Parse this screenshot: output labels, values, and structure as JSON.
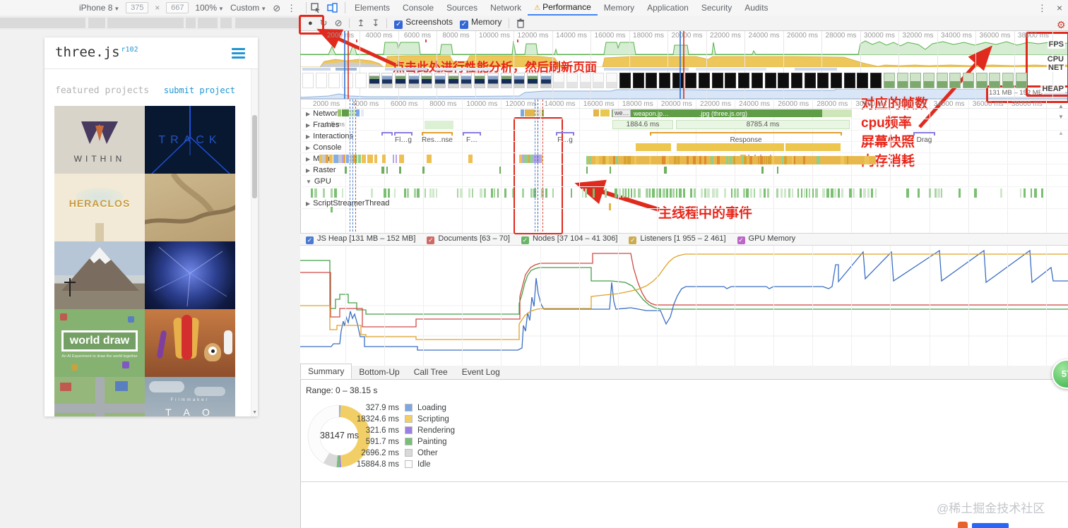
{
  "device_toolbar": {
    "device": "iPhone 8",
    "width": "375",
    "height": "667",
    "zoom": "100%",
    "throttle": "Custom"
  },
  "devtools_tabs": {
    "items": [
      "Elements",
      "Console",
      "Sources",
      "Network",
      "Performance",
      "Memory",
      "Application",
      "Security",
      "Audits"
    ],
    "active": "Performance"
  },
  "perf_toolbar": {
    "screenshots_label": "Screenshots",
    "memory_label": "Memory"
  },
  "overview": {
    "ticks": [
      "2000 ms",
      "4000 ms",
      "6000 ms",
      "8000 ms",
      "10000 ms",
      "12000 ms",
      "14000 ms",
      "16000 ms",
      "18000 ms",
      "20000 ms",
      "22000 ms",
      "24000 ms",
      "26000 ms",
      "28000 ms",
      "30000 ms",
      "32000 ms",
      "34000 ms",
      "36000 ms",
      "38000 ms"
    ],
    "side_labels": [
      "FPS",
      "CPU",
      "NET",
      "HEAP"
    ],
    "heap_range": "131 MB – 152 MB"
  },
  "detail": {
    "ticks": [
      "2000 ms",
      "4000 ms",
      "6000 ms",
      "8000 ms",
      "10000 ms",
      "12000 ms",
      "14000 ms",
      "16000 ms",
      "18000 ms",
      "20000 ms",
      "22000 ms",
      "24000 ms",
      "26000 ms",
      "28000 ms",
      "30000 ms",
      "32000 ms",
      "34000 ms",
      "36000 ms",
      "38000 ms"
    ],
    "tracks": [
      {
        "arrow": "▶",
        "label": "Network"
      },
      {
        "arrow": "▶",
        "label": "Frames"
      },
      {
        "arrow": "▶",
        "label": "Interactions"
      },
      {
        "arrow": "▶",
        "label": "Console"
      },
      {
        "arrow": "▶",
        "label": "Main"
      },
      {
        "arrow": "▶",
        "label": "Raster"
      },
      {
        "arrow": "▼",
        "label": "GPU"
      },
      {
        "arrow": "▶",
        "label": "ScriptStreamerThread"
      }
    ],
    "frames_hint": "1.5 ms",
    "network_chip": "we…",
    "network_label1": "weapon.jp…",
    "network_label2": ".jpg (three.js.org)",
    "frame_blocks": [
      "1884.6 ms",
      "8785.4 ms"
    ],
    "interactions": [
      "Fl…g",
      "Res…nse",
      "F…",
      "F…g",
      "Response",
      "Drag"
    ]
  },
  "memory_legend": [
    {
      "label": "JS Heap [131 MB – 152 MB]",
      "color": "#4a7bd0"
    },
    {
      "label": "Documents [63 – 70]",
      "color": "#cd6a65"
    },
    {
      "label": "Nodes [37 104 – 41 306]",
      "color": "#69b766"
    },
    {
      "label": "Listeners [1 955 – 2 461]",
      "color": "#ccac4e"
    },
    {
      "label": "GPU Memory",
      "color": "#bd66c8"
    }
  ],
  "bottom_tabs": {
    "items": [
      "Summary",
      "Bottom-Up",
      "Call Tree",
      "Event Log"
    ],
    "active": "Summary"
  },
  "summary": {
    "range": "Range: 0 – 38.15 s",
    "total": "38147 ms"
  },
  "chart_data": {
    "type": "pie",
    "title": "Performance Summary 0 – 38.15 s",
    "total_label": "38147 ms",
    "series": [
      {
        "label": "Loading",
        "value_ms": 327.9,
        "color": "#7da7e0"
      },
      {
        "label": "Scripting",
        "value_ms": 18324.6,
        "color": "#f2cf66"
      },
      {
        "label": "Rendering",
        "value_ms": 321.6,
        "color": "#9b7fe6"
      },
      {
        "label": "Painting",
        "value_ms": 591.7,
        "color": "#77bf79"
      },
      {
        "label": "Other",
        "value_ms": 2696.2,
        "color": "#d9d9d9"
      },
      {
        "label": "Idle",
        "value_ms": 15884.8,
        "color": "#fcfcfc"
      }
    ]
  },
  "site": {
    "logo": "three.js",
    "version": "r102",
    "heading": "featured projects",
    "submit_link": "submit project",
    "projects": {
      "within": "WITHIN",
      "track": "TRACK",
      "heraclos": "HERACLOS",
      "worlddraw": "world draw",
      "worlddraw_sub": "An AI Experiment to draw the world together",
      "tao_top": "Filmmaker",
      "tao": "T A O"
    }
  },
  "annotations": {
    "click_record": "点击此处进行性能分析，然后刷新页面",
    "frames": "对应的帧数",
    "cpu": "cpu频率",
    "screenshot": "屏幕快照",
    "memory": "内存消耗",
    "main_thread": "主线程中的事件",
    "badge": "57"
  },
  "watermark": "@稀土掘金技术社区"
}
